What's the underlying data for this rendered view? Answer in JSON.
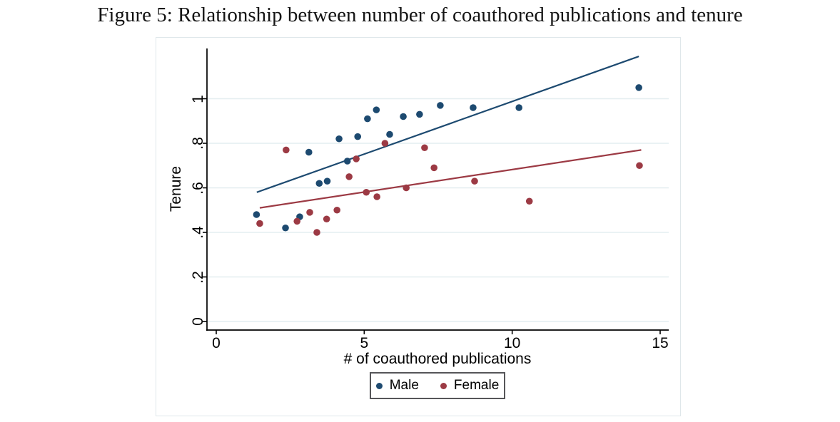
{
  "figure": {
    "caption": "Figure 5: Relationship between number of coauthored publications and tenure"
  },
  "chart_data": {
    "type": "scatter",
    "title": "",
    "xlabel": "# of coauthored publications",
    "ylabel": "Tenure",
    "xlim": [
      0,
      15.3
    ],
    "ylim": [
      0,
      1.23
    ],
    "xticks": [
      "0",
      "5",
      "10",
      "15"
    ],
    "xtick_values": [
      0,
      5,
      10,
      15
    ],
    "yticks": [
      "0",
      ".2",
      ".4",
      ".6",
      ".8",
      "1"
    ],
    "ytick_values": [
      0,
      0.2,
      0.4,
      0.6,
      0.8,
      1
    ],
    "grid": "horizontal",
    "grid_color": "#e4eef0",
    "axis_color": "#000000",
    "legend_position": "bottom",
    "series": [
      {
        "name": "Male",
        "color": "#1d4a70",
        "marker": "circle",
        "points": [
          [
            1.36,
            0.48
          ],
          [
            2.34,
            0.42
          ],
          [
            2.82,
            0.47
          ],
          [
            3.13,
            0.76
          ],
          [
            3.48,
            0.62
          ],
          [
            3.75,
            0.63
          ],
          [
            4.15,
            0.82
          ],
          [
            4.43,
            0.72
          ],
          [
            4.78,
            0.83
          ],
          [
            5.11,
            0.91
          ],
          [
            5.41,
            0.95
          ],
          [
            5.86,
            0.84
          ],
          [
            6.32,
            0.92
          ],
          [
            6.87,
            0.93
          ],
          [
            7.57,
            0.97
          ],
          [
            8.68,
            0.96
          ],
          [
            10.23,
            0.96
          ],
          [
            14.28,
            1.05
          ]
        ],
        "fit_line": {
          "x1": 1.37,
          "y1": 0.58,
          "x2": 14.28,
          "y2": 1.19
        }
      },
      {
        "name": "Female",
        "color": "#9c3a44",
        "marker": "circle",
        "points": [
          [
            1.47,
            0.44
          ],
          [
            2.36,
            0.77
          ],
          [
            2.73,
            0.45
          ],
          [
            3.16,
            0.49
          ],
          [
            3.4,
            0.4
          ],
          [
            3.73,
            0.46
          ],
          [
            4.08,
            0.5
          ],
          [
            4.49,
            0.65
          ],
          [
            4.73,
            0.73
          ],
          [
            5.07,
            0.58
          ],
          [
            5.43,
            0.56
          ],
          [
            5.7,
            0.8
          ],
          [
            6.42,
            0.6
          ],
          [
            7.04,
            0.78
          ],
          [
            7.36,
            0.69
          ],
          [
            8.73,
            0.63
          ],
          [
            10.58,
            0.54
          ],
          [
            14.3,
            0.7
          ]
        ],
        "fit_line": {
          "x1": 1.47,
          "y1": 0.51,
          "x2": 14.36,
          "y2": 0.77
        }
      }
    ]
  }
}
